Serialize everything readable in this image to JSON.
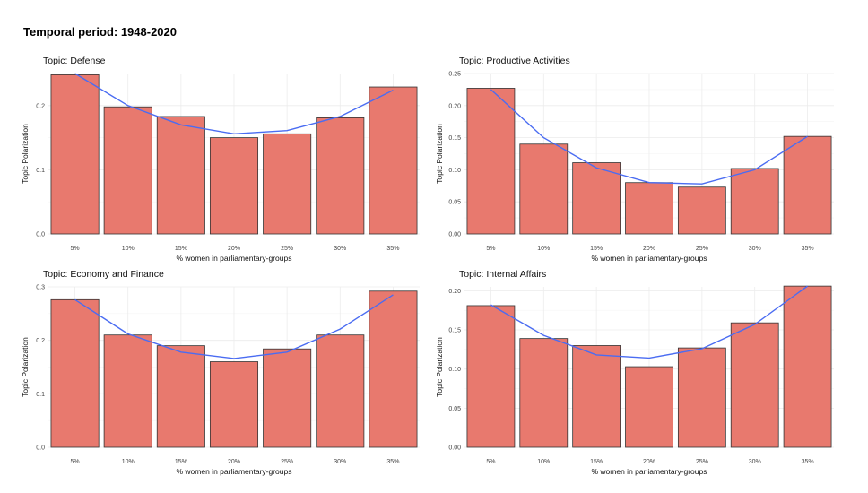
{
  "page": {
    "title": "Temporal period: 1948-2020"
  },
  "chart_data": [
    {
      "type": "bar",
      "title": "Topic: Defense",
      "xlabel": "% women in parliamentary-groups",
      "ylabel": "Topic Polarization",
      "categories": [
        "5%",
        "10%",
        "15%",
        "20%",
        "25%",
        "30%",
        "35%"
      ],
      "values": [
        0.248,
        0.198,
        0.183,
        0.15,
        0.156,
        0.181,
        0.229
      ],
      "trend": [
        0.25,
        0.2,
        0.17,
        0.156,
        0.161,
        0.183,
        0.224
      ],
      "ylim": [
        0,
        0.25
      ],
      "yticks": [
        0.0,
        0.1,
        0.2
      ],
      "ytick_labels": [
        "0.0",
        "0.1",
        "0.2"
      ],
      "grid": true
    },
    {
      "type": "bar",
      "title": "Topic: Productive Activities",
      "xlabel": "% women in parliamentary-groups",
      "ylabel": "Topic Polarization",
      "categories": [
        "5%",
        "10%",
        "15%",
        "20%",
        "25%",
        "30%",
        "35%"
      ],
      "values": [
        0.227,
        0.14,
        0.111,
        0.08,
        0.073,
        0.102,
        0.152
      ],
      "trend": [
        0.225,
        0.15,
        0.103,
        0.08,
        0.078,
        0.1,
        0.152
      ],
      "ylim": [
        0,
        0.25
      ],
      "yticks": [
        0.0,
        0.05,
        0.1,
        0.15,
        0.2,
        0.25
      ],
      "ytick_labels": [
        "0.00",
        "0.05",
        "0.10",
        "0.15",
        "0.20",
        "0.25"
      ],
      "grid": true
    },
    {
      "type": "bar",
      "title": "Topic: Economy and Finance",
      "xlabel": "% women in parliamentary-groups",
      "ylabel": "Topic Polarization",
      "categories": [
        "5%",
        "10%",
        "15%",
        "20%",
        "25%",
        "30%",
        "35%"
      ],
      "values": [
        0.276,
        0.21,
        0.19,
        0.16,
        0.184,
        0.21,
        0.292
      ],
      "trend": [
        0.276,
        0.212,
        0.178,
        0.166,
        0.178,
        0.221,
        0.285
      ],
      "ylim": [
        0,
        0.3
      ],
      "yticks": [
        0.0,
        0.1,
        0.2,
        0.3
      ],
      "ytick_labels": [
        "0.0",
        "0.1",
        "0.2",
        "0.3"
      ],
      "grid": true
    },
    {
      "type": "bar",
      "title": "Topic: Internal Affairs",
      "xlabel": "% women in parliamentary-groups",
      "ylabel": "Topic Polarization",
      "categories": [
        "5%",
        "10%",
        "15%",
        "20%",
        "25%",
        "30%",
        "35%"
      ],
      "values": [
        0.181,
        0.139,
        0.13,
        0.103,
        0.127,
        0.159,
        0.206
      ],
      "trend": [
        0.182,
        0.143,
        0.118,
        0.114,
        0.126,
        0.157,
        0.206
      ],
      "ylim": [
        0,
        0.205
      ],
      "yticks": [
        0.0,
        0.05,
        0.1,
        0.15,
        0.2
      ],
      "ytick_labels": [
        "0.00",
        "0.05",
        "0.10",
        "0.15",
        "0.20"
      ],
      "grid": true
    }
  ],
  "colors": {
    "bar_fill": "#e8796e",
    "bar_stroke": "#333333",
    "trend_line": "#4a6cf2",
    "grid": "#ececec"
  }
}
